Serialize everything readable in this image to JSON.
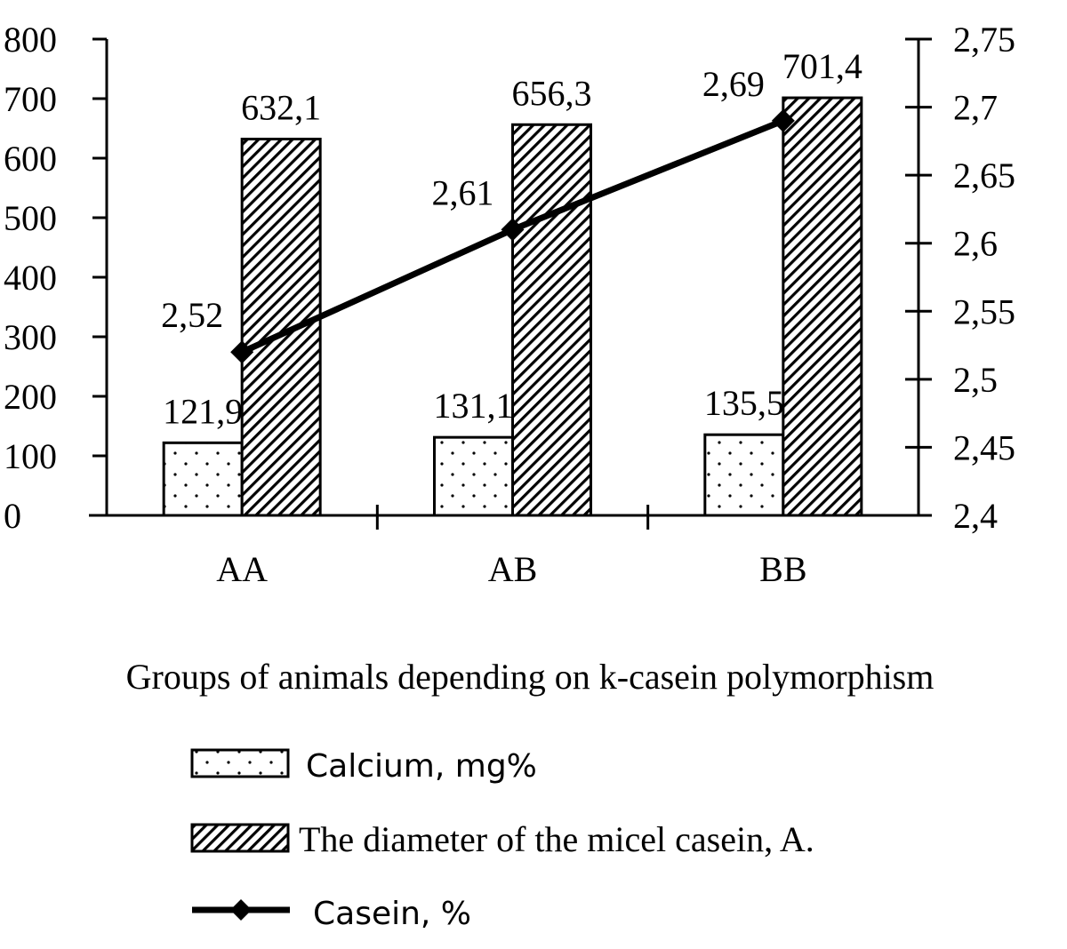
{
  "chart_data": {
    "type": "bar",
    "title": "",
    "xlabel": "Groups of animals depending on k-casein polymorphism",
    "categories": [
      "AA",
      "AB",
      "BB"
    ],
    "y_left": {
      "ylim": [
        0,
        800
      ],
      "ticks": [
        "0",
        "100",
        "200",
        "300",
        "400",
        "500",
        "600",
        "700",
        "800"
      ]
    },
    "y_right": {
      "ylim": [
        2.4,
        2.75
      ],
      "ticks": [
        "2,4",
        "2,45",
        "2,5",
        "2,55",
        "2,6",
        "2,65",
        "2,7",
        "2,75"
      ]
    },
    "series": [
      {
        "name": "Calcium, mg%",
        "kind": "bar",
        "pattern": "dots",
        "axis": "left",
        "values": [
          121.9,
          131.1,
          135.5
        ],
        "labels": [
          "121,9",
          "131,1",
          "135,5"
        ]
      },
      {
        "name": "The diameter of the micel casein, A.",
        "kind": "bar",
        "pattern": "hatch",
        "axis": "left",
        "values": [
          632.1,
          656.3,
          701.4
        ],
        "labels": [
          "632,1",
          "656,3",
          "701,4"
        ]
      },
      {
        "name": "Casein, %",
        "kind": "line",
        "marker": "diamond",
        "axis": "right",
        "values": [
          2.52,
          2.61,
          2.69
        ],
        "labels": [
          "2,52",
          "2,61",
          "2,69"
        ]
      }
    ],
    "grid": false,
    "legend_position": "bottom",
    "colors": {
      "ink": "#000000",
      "background": "#ffffff"
    }
  }
}
